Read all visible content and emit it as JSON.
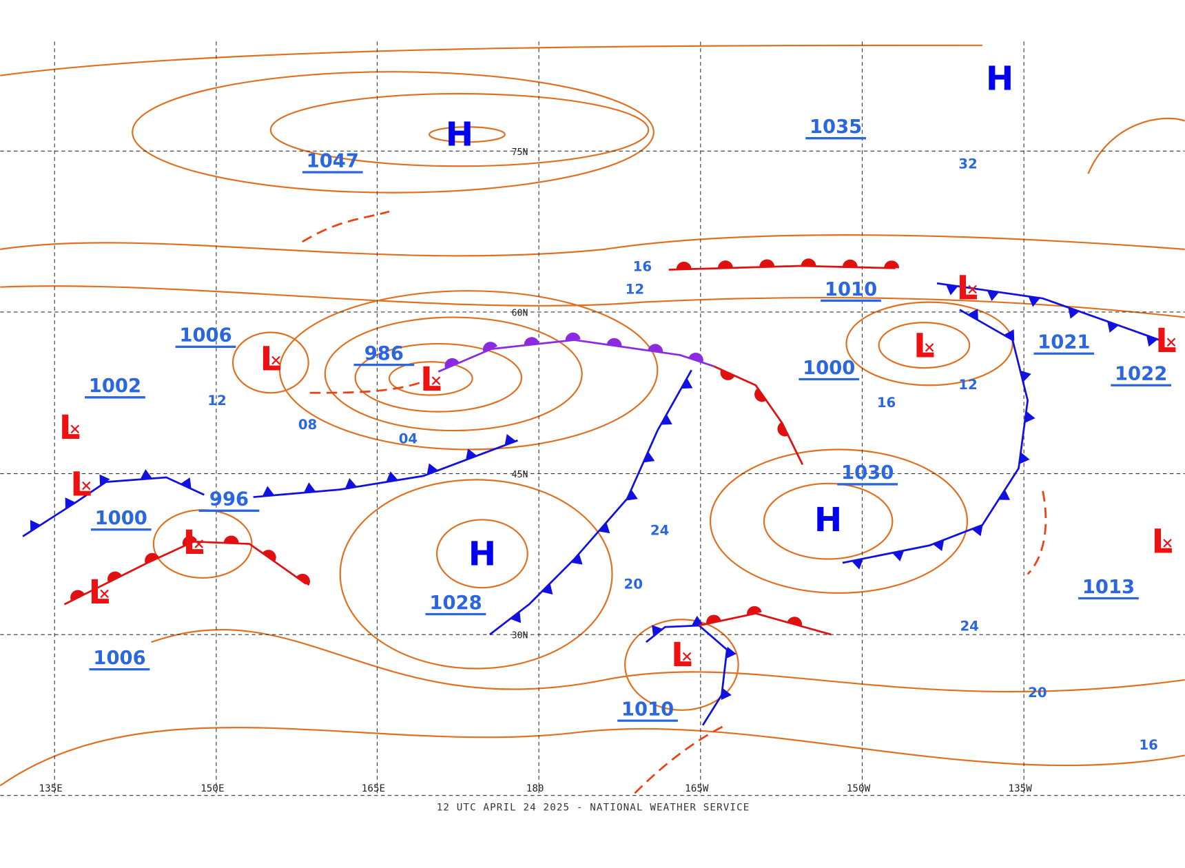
{
  "map": {
    "footer": "12 UTC APRIL 24 2025 - NATIONAL WEATHER SERVICE",
    "lat_labels": [
      "75N",
      "60N",
      "45N",
      "30N"
    ],
    "lon_labels": [
      "135E",
      "150E",
      "165E",
      "180",
      "165W",
      "150W",
      "135W"
    ],
    "highs": [
      "H",
      "H",
      "H",
      "H"
    ],
    "lows": [
      "L",
      "L",
      "L",
      "L",
      "L",
      "L",
      "L",
      "L",
      "L",
      "L",
      "L"
    ],
    "pressure_labels": [
      "1047",
      "1035",
      "1006",
      "986",
      "1002",
      "1010",
      "1000",
      "1021",
      "1022",
      "1030",
      "996",
      "1000",
      "1028",
      "1013",
      "1006",
      "1010"
    ],
    "isobar_labels": [
      "16",
      "12",
      "12",
      "08",
      "04",
      "24",
      "20",
      "16",
      "12",
      "32",
      "24",
      "20",
      "16"
    ]
  }
}
